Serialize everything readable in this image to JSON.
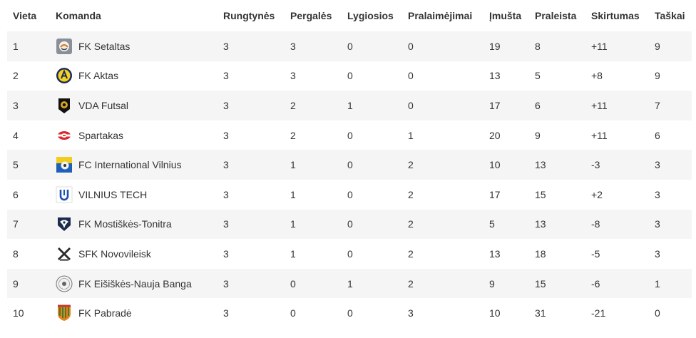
{
  "table": {
    "headers": {
      "vieta": "Vieta",
      "komanda": "Komanda",
      "rungtynes": "Rungtynės",
      "pergales": "Pergalės",
      "lygiosios": "Lygiosios",
      "pralaimejimai": "Pralaimėjimai",
      "imusta": "Įmušta",
      "praleista": "Praleista",
      "skirtumas": "Skirtumas",
      "taskai": "Taškai"
    },
    "rows": [
      {
        "vieta": "1",
        "komanda": "FK Setaltas",
        "logo": "setaltas-logo-icon",
        "rungtynes": "3",
        "pergales": "3",
        "lygiosios": "0",
        "pralaimejimai": "0",
        "imusta": "19",
        "praleista": "8",
        "skirtumas": "+11",
        "taskai": "9"
      },
      {
        "vieta": "2",
        "komanda": " FK Aktas",
        "logo": "aktas-logo-icon",
        "rungtynes": "3",
        "pergales": "3",
        "lygiosios": "0",
        "pralaimejimai": "0",
        "imusta": "13",
        "praleista": "5",
        "skirtumas": "+8",
        "taskai": "9"
      },
      {
        "vieta": "3",
        "komanda": "VDA Futsal",
        "logo": "vda-futsal-logo-icon",
        "rungtynes": "3",
        "pergales": "2",
        "lygiosios": "1",
        "pralaimejimai": "0",
        "imusta": "17",
        "praleista": "6",
        "skirtumas": "+11",
        "taskai": "7"
      },
      {
        "vieta": "4",
        "komanda": "Spartakas",
        "logo": "spartakas-logo-icon",
        "rungtynes": "3",
        "pergales": "2",
        "lygiosios": "0",
        "pralaimejimai": "1",
        "imusta": "20",
        "praleista": "9",
        "skirtumas": "+11",
        "taskai": "6"
      },
      {
        "vieta": "5",
        "komanda": "FC International Vilnius",
        "logo": "fc-international-vilnius-logo-icon",
        "rungtynes": "3",
        "pergales": "1",
        "lygiosios": "0",
        "pralaimejimai": "2",
        "imusta": "10",
        "praleista": "13",
        "skirtumas": "-3",
        "taskai": "3"
      },
      {
        "vieta": "6",
        "komanda": "VILNIUS TECH",
        "logo": "vilnius-tech-logo-icon",
        "rungtynes": "3",
        "pergales": "1",
        "lygiosios": "0",
        "pralaimejimai": "2",
        "imusta": "17",
        "praleista": "15",
        "skirtumas": "+2",
        "taskai": "3"
      },
      {
        "vieta": "7",
        "komanda": "FK Mostiškės-Tonitra",
        "logo": "mostiskes-tonitra-logo-icon",
        "rungtynes": "3",
        "pergales": "1",
        "lygiosios": "0",
        "pralaimejimai": "2",
        "imusta": "5",
        "praleista": "13",
        "skirtumas": "-8",
        "taskai": "3"
      },
      {
        "vieta": "8",
        "komanda": "SFK Novovileisk",
        "logo": "novovileisk-logo-icon",
        "rungtynes": "3",
        "pergales": "1",
        "lygiosios": "0",
        "pralaimejimai": "2",
        "imusta": "13",
        "praleista": "18",
        "skirtumas": "-5",
        "taskai": "3"
      },
      {
        "vieta": "9",
        "komanda": "FK Eišiškės-Nauja Banga",
        "logo": "eisiskes-nauja-banga-logo-icon",
        "rungtynes": "3",
        "pergales": "0",
        "lygiosios": "1",
        "pralaimejimai": "2",
        "imusta": "9",
        "praleista": "15",
        "skirtumas": "-6",
        "taskai": "1"
      },
      {
        "vieta": "10",
        "komanda": "FK Pabradė",
        "logo": "pabrade-logo-icon",
        "rungtynes": "3",
        "pergales": "0",
        "lygiosios": "0",
        "pralaimejimai": "3",
        "imusta": "10",
        "praleista": "31",
        "skirtumas": "-21",
        "taskai": "0"
      }
    ]
  },
  "colors": {
    "row_odd": "#f5f5f5",
    "row_even": "#ffffff",
    "text": "#333333"
  }
}
